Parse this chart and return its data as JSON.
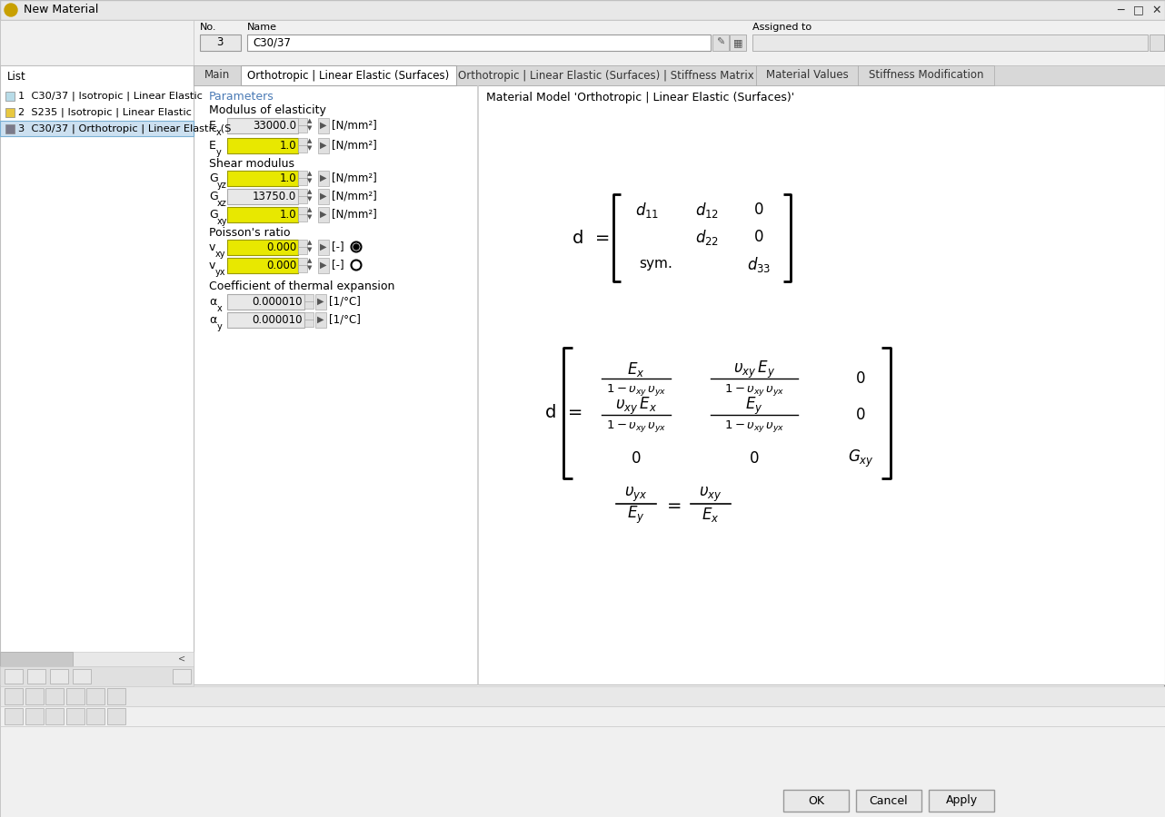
{
  "title_bar": "New Material",
  "window_bg": "#f0f0f0",
  "list_items": [
    {
      "num": 1,
      "text": "C30/37 | Isotropic | Linear Elastic",
      "color": "#b8dce8"
    },
    {
      "num": 2,
      "text": "S235 | Isotropic | Linear Elastic",
      "color": "#e8c840"
    },
    {
      "num": 3,
      "text": "C30/37 | Orthotropic | Linear Elastic (S",
      "color": "#7a7a8a"
    }
  ],
  "tabs": [
    "Main",
    "Orthotropic | Linear Elastic (Surfaces)",
    "Orthotropic | Linear Elastic (Surfaces) | Stiffness Matrix",
    "Material Values",
    "Stiffness Modification"
  ],
  "highlight_yellow": "#e8e800",
  "params_color": "#4a7ab5",
  "button_ok": "OK",
  "button_cancel": "Cancel",
  "button_apply": "Apply"
}
